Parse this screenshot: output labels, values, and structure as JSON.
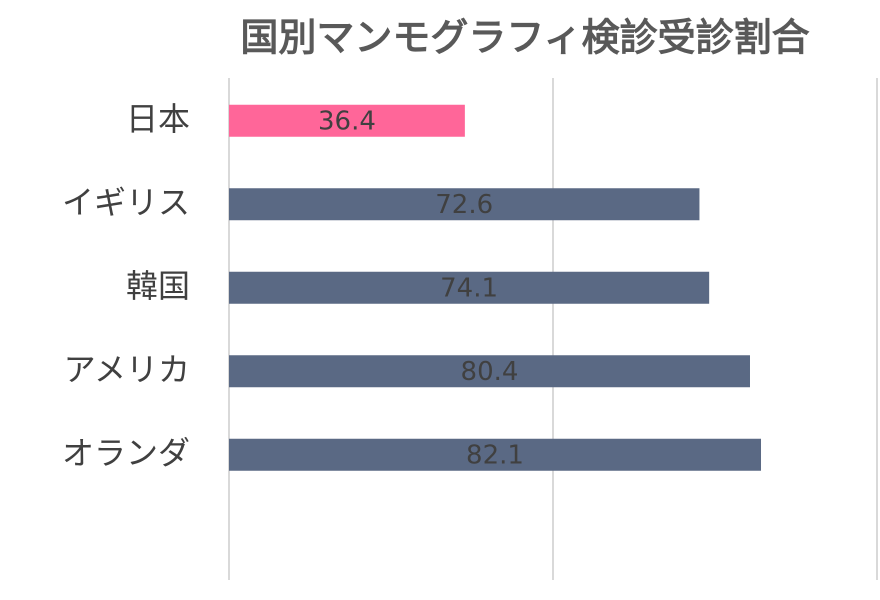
{
  "chart_data": {
    "type": "hbar",
    "title": "国別マンモグラフィ検診受診割合",
    "categories": [
      "日本",
      "イギリス",
      "韓国",
      "アメリカ",
      "オランダ"
    ],
    "values": [
      36.4,
      72.6,
      74.1,
      80.4,
      82.1
    ],
    "colors": [
      "#ff6699",
      "#5a6984",
      "#5a6984",
      "#5a6984",
      "#5a6984"
    ],
    "xlim": [
      0,
      100
    ],
    "xticks": [
      0,
      50,
      100
    ],
    "grid": true
  }
}
